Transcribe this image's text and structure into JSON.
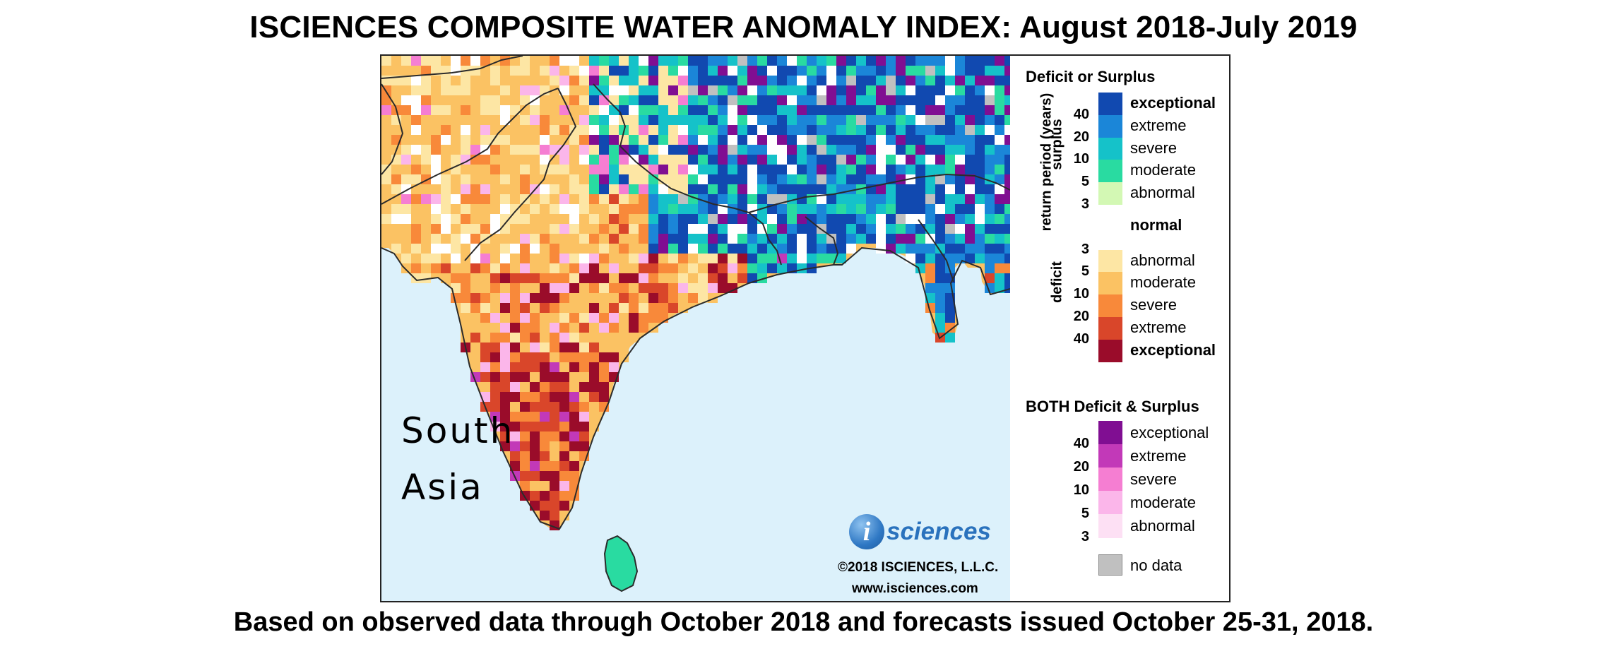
{
  "title": "ISCIENCES COMPOSITE WATER ANOMALY INDEX: August 2018-July 2019",
  "footer": "Based on observed data through October 2018 and forecasts issued October 25-31, 2018.",
  "map": {
    "region_label": "South\nAsia",
    "logo_letter": "i",
    "logo_text": "sciences",
    "copyright": "©2018 ISCIENCES, L.L.C.",
    "website": "www.isciences.com",
    "colors": {
      "ocean": "#dcf1fb",
      "border": "#2b2b2b"
    }
  },
  "legend": {
    "heading_main": "Deficit or Surplus",
    "axis_label": "return period (years)",
    "surplus_label": "surplus",
    "deficit_label": "deficit",
    "main_classes": [
      {
        "label": "exceptional",
        "color": "#1149b0",
        "bold": true
      },
      {
        "label": "extreme",
        "color": "#1b86d8",
        "bold": false
      },
      {
        "label": "severe",
        "color": "#15c2c9",
        "bold": false
      },
      {
        "label": "moderate",
        "color": "#29dba1",
        "bold": false
      },
      {
        "label": "abnormal",
        "color": "#d3f8b4",
        "bold": false
      },
      {
        "label": "normal",
        "color": "#ffffff",
        "bold": true
      },
      {
        "label": "abnormal",
        "color": "#fde6a4",
        "bold": false
      },
      {
        "label": "moderate",
        "color": "#fbc263",
        "bold": false
      },
      {
        "label": "severe",
        "color": "#f8893a",
        "bold": false
      },
      {
        "label": "extreme",
        "color": "#d9462a",
        "bold": false
      },
      {
        "label": "exceptional",
        "color": "#9a0c2a",
        "bold": true
      }
    ],
    "surplus_ticks": [
      "40",
      "20",
      "10",
      "5",
      "3"
    ],
    "deficit_ticks": [
      "3",
      "5",
      "10",
      "20",
      "40"
    ],
    "heading_both": "BOTH Deficit & Surplus",
    "both_classes": [
      {
        "label": "exceptional",
        "color": "#800e92"
      },
      {
        "label": "extreme",
        "color": "#c239b8"
      },
      {
        "label": "severe",
        "color": "#f57ed2"
      },
      {
        "label": "moderate",
        "color": "#fbb6ea"
      },
      {
        "label": "abnormal",
        "color": "#fde0f4"
      }
    ],
    "both_ticks": [
      "40",
      "20",
      "10",
      "5",
      "3"
    ],
    "nodata_label": "no data",
    "nodata_color": "#c0c0c0"
  }
}
